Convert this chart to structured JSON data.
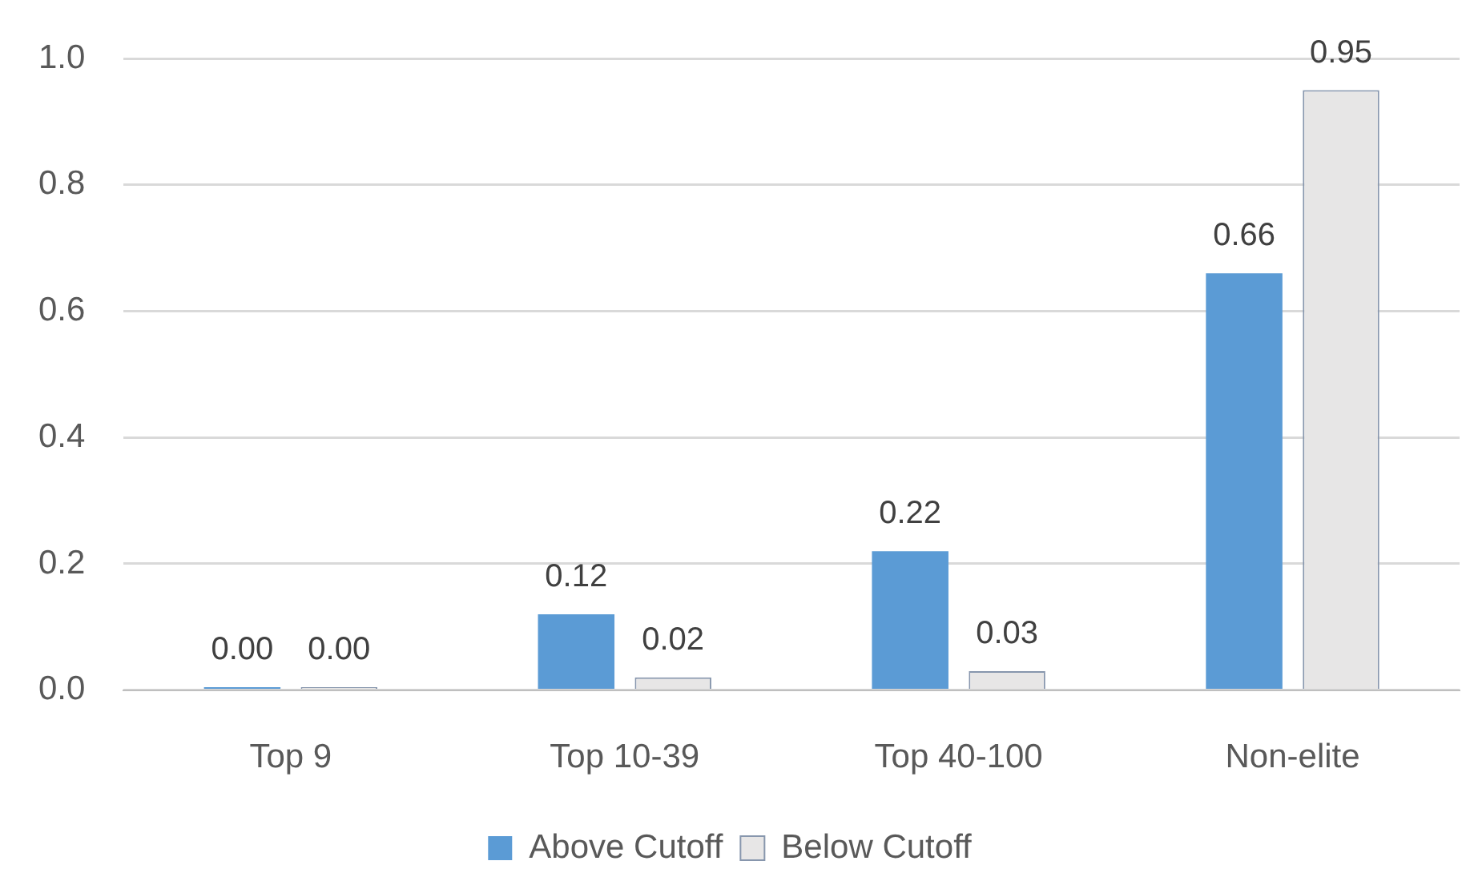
{
  "chart_data": {
    "type": "bar",
    "categories": [
      "Top 9",
      "Top 10-39",
      "Top 40-100",
      "Non-elite"
    ],
    "series": [
      {
        "name": "Above Cutoff",
        "color": "#5b9bd5",
        "values": [
          0.0045,
          0.12,
          0.22,
          0.66
        ],
        "value_labels": [
          "0.00",
          "0.12",
          "0.22",
          "0.66"
        ]
      },
      {
        "name": "Below Cutoff",
        "color": "#e7e6e6",
        "values": [
          0.0045,
          0.02,
          0.03,
          0.95
        ],
        "value_labels": [
          "0.00",
          "0.02",
          "0.03",
          "0.95"
        ]
      }
    ],
    "ylim": [
      0,
      1
    ],
    "yticks": [
      {
        "value": 0,
        "label": "0.0"
      },
      {
        "value": 0.2,
        "label": "0.2"
      },
      {
        "value": 0.4,
        "label": "0.4"
      },
      {
        "value": 0.6,
        "label": "0.6"
      },
      {
        "value": 0.8,
        "label": "0.8"
      },
      {
        "value": 1,
        "label": "1.0"
      }
    ],
    "grid": "y",
    "legend": "bottom"
  }
}
